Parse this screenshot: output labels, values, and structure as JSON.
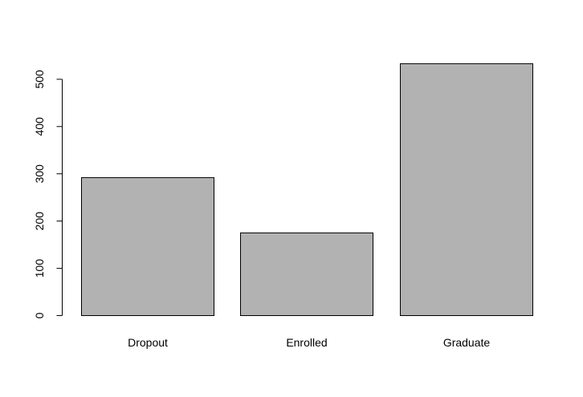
{
  "chart_data": {
    "type": "bar",
    "categories": [
      "Dropout",
      "Enrolled",
      "Graduate"
    ],
    "values": [
      292,
      175,
      533
    ],
    "title": "",
    "xlabel": "",
    "ylabel": "",
    "ylim": [
      0,
      533
    ],
    "yticks": [
      0,
      100,
      200,
      300,
      400,
      500
    ],
    "ytick_labels": [
      "0",
      "100",
      "200",
      "300",
      "400",
      "500"
    ],
    "grid": false,
    "legend": "none",
    "bar_color": "#b2b2b2",
    "bar_border_color": "#000000"
  }
}
